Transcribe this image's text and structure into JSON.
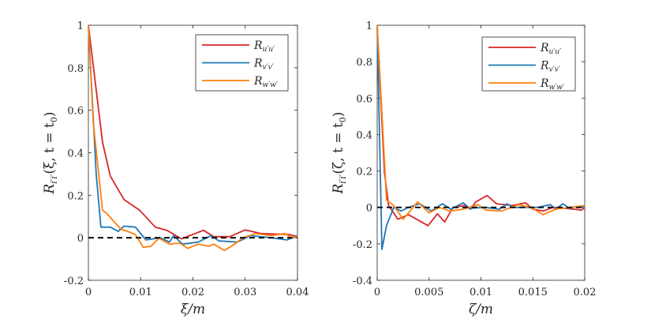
{
  "chart_data": [
    {
      "type": "line",
      "xlabel": "ξ/m",
      "ylabel": {
        "main": "R",
        "sub": "i′i′",
        "args": "(ξ, t = t",
        "args_sub": "0",
        "close": ")"
      },
      "xlim": [
        0,
        0.04
      ],
      "ylim": [
        -0.2,
        1
      ],
      "xticks": [
        0,
        0.01,
        0.02,
        0.03,
        0.04
      ],
      "xtick_labels": [
        "0",
        "0.01",
        "0.02",
        "0.03",
        "0.04"
      ],
      "yticks": [
        -0.2,
        0,
        0.2,
        0.4,
        0.6,
        0.8,
        1
      ],
      "ytick_labels": [
        "-0.2",
        "0",
        "0.2",
        "0.4",
        "0.6",
        "0.8",
        "1"
      ],
      "grid": false,
      "legend_position": "top-right",
      "zero_line": {
        "y": 0,
        "style": "dashed",
        "color": "#000000"
      },
      "series": [
        {
          "name": "R",
          "sub": "u′u′",
          "color": "#d62728",
          "x": [
            0,
            0.0027,
            0.0042,
            0.0068,
            0.0098,
            0.0128,
            0.015,
            0.0178,
            0.022,
            0.024,
            0.027,
            0.03,
            0.033,
            0.0385,
            0.04
          ],
          "y": [
            1,
            0.45,
            0.29,
            0.18,
            0.13,
            0.05,
            0.035,
            -0.005,
            0.035,
            0.005,
            0.005,
            0.037,
            0.02,
            0.015,
            0.005
          ]
        },
        {
          "name": "R",
          "sub": "v′v′",
          "color": "#1f77b4",
          "x": [
            0,
            0.0015,
            0.0024,
            0.0042,
            0.0057,
            0.0068,
            0.009,
            0.011,
            0.0138,
            0.0155,
            0.0163,
            0.018,
            0.021,
            0.0235,
            0.025,
            0.0285,
            0.031,
            0.035,
            0.038,
            0.04
          ],
          "y": [
            1,
            0.3,
            0.05,
            0.05,
            0.03,
            0.055,
            0.05,
            -0.01,
            0,
            -0.02,
            0.01,
            -0.03,
            -0.02,
            0.01,
            -0.015,
            -0.02,
            0.01,
            0,
            -0.01,
            0.01
          ]
        },
        {
          "name": "R",
          "sub": "w′w′",
          "color": "#ff7f0e",
          "x": [
            0,
            0.0009,
            0.0027,
            0.0037,
            0.0062,
            0.0075,
            0.009,
            0.0105,
            0.012,
            0.0135,
            0.0155,
            0.0175,
            0.019,
            0.021,
            0.023,
            0.024,
            0.026,
            0.028,
            0.0295,
            0.032,
            0.035,
            0.0375,
            0.039,
            0.04
          ],
          "y": [
            1,
            0.55,
            0.13,
            0.11,
            0.04,
            0.03,
            0.015,
            -0.045,
            -0.04,
            -0.002,
            -0.03,
            -0.025,
            -0.05,
            -0.03,
            -0.04,
            -0.03,
            -0.06,
            -0.03,
            0,
            0.02,
            0.01,
            0.02,
            0,
            0.005
          ]
        }
      ]
    },
    {
      "type": "line",
      "xlabel": "ζ/m",
      "ylabel": {
        "main": "R",
        "sub": "i′i′",
        "args": "(ζ, t = t",
        "args_sub": "0",
        "close": ")"
      },
      "xlim": [
        0,
        0.02
      ],
      "ylim": [
        -0.4,
        1
      ],
      "xticks": [
        0,
        0.005,
        0.01,
        0.015,
        0.02
      ],
      "xtick_labels": [
        "0",
        "0.005",
        "0.01",
        "0.015",
        "0.02"
      ],
      "yticks": [
        -0.4,
        -0.2,
        0,
        0.2,
        0.4,
        0.6,
        0.8,
        1
      ],
      "ytick_labels": [
        "-0.4",
        "-0.2",
        "0",
        "0.2",
        "0.4",
        "0.6",
        "0.8",
        "1"
      ],
      "grid": false,
      "legend_position": "top-right",
      "zero_line": {
        "y": 0,
        "style": "dashed",
        "color": "#000000"
      },
      "series": [
        {
          "name": "R",
          "sub": "u′u′",
          "color": "#d62728",
          "x": [
            0,
            0.0007,
            0.0011,
            0.002,
            0.003,
            0.0038,
            0.0049,
            0.0058,
            0.0065,
            0.0073,
            0.0084,
            0.009,
            0.0095,
            0.0106,
            0.0115,
            0.013,
            0.0143,
            0.015,
            0.016,
            0.017,
            0.019,
            0.0197,
            0.02
          ],
          "y": [
            1,
            0.19,
            0.01,
            -0.065,
            -0.04,
            -0.065,
            -0.1,
            -0.035,
            -0.08,
            0,
            0.01,
            -0.01,
            0.03,
            0.065,
            0.02,
            0.01,
            0.025,
            -0.01,
            -0.02,
            0,
            -0.01,
            -0.015,
            0
          ]
        },
        {
          "name": "R",
          "sub": "v′v′",
          "color": "#1f77b4",
          "x": [
            0,
            0.0003,
            0.00046,
            0.0009,
            0.0016,
            0.0023,
            0.003,
            0.0041,
            0.0052,
            0.0063,
            0.0071,
            0.0083,
            0.0089,
            0.0104,
            0.0118,
            0.0125,
            0.0131,
            0.0154,
            0.0167,
            0.0172,
            0.0179,
            0.0185,
            0.0192,
            0.02
          ],
          "y": [
            1,
            0.2,
            -0.23,
            -0.1,
            0,
            -0.02,
            0,
            0.02,
            -0.02,
            0.02,
            -0.01,
            0.025,
            -0.005,
            0,
            -0.01,
            0.02,
            0,
            0,
            0.015,
            -0.01,
            0.02,
            -0.005,
            0.005,
            0
          ]
        },
        {
          "name": "R",
          "sub": "w′w′",
          "color": "#ff7f0e",
          "x": [
            0,
            0.0005,
            0.0009,
            0.0016,
            0.0025,
            0.0039,
            0.005,
            0.006,
            0.007,
            0.0083,
            0.0097,
            0.0105,
            0.012,
            0.0136,
            0.0148,
            0.016,
            0.0172,
            0.0192,
            0.02
          ],
          "y": [
            1,
            0.47,
            0.04,
            0.01,
            -0.065,
            0.03,
            -0.03,
            0,
            -0.02,
            -0.01,
            0.015,
            -0.015,
            -0.02,
            0.015,
            0,
            -0.04,
            -0.01,
            0.005,
            0.01
          ]
        }
      ]
    }
  ]
}
